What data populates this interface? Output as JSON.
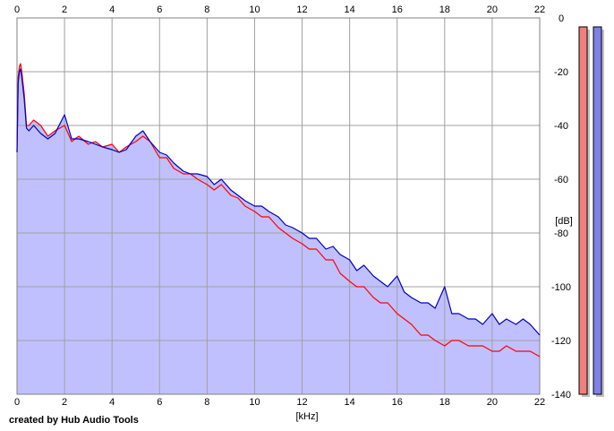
{
  "credit_text": "created by Hub Audio Tools",
  "colors": {
    "background": "#ffffff",
    "plot_background": "#ffffff",
    "grid": "#a0a0a0",
    "fill": "#c0c0ff",
    "red_line": "#ff0000",
    "blue_line": "#0000c0",
    "meter_red": "#f08080",
    "meter_blue": "#8080e8",
    "meter_shadow": "#c0c0c0"
  },
  "chart_data": {
    "type": "line",
    "xlabel": "[kHz]",
    "ylabel": "[dB]",
    "xlim": [
      0,
      22
    ],
    "ylim": [
      -140,
      0
    ],
    "grid": true,
    "x_ticks": [
      "0",
      "2",
      "4",
      "6",
      "8",
      "10",
      "12",
      "14",
      "16",
      "18",
      "20",
      "22"
    ],
    "y_ticks": [
      "0",
      "-20",
      "-40",
      "-60",
      "-80",
      "-100",
      "-120",
      "-140"
    ],
    "series": [
      {
        "color": "#ff0000",
        "x": [
          0.0,
          0.05,
          0.1,
          0.15,
          0.2,
          0.3,
          0.4,
          0.5,
          0.7,
          1.0,
          1.3,
          1.6,
          2.0,
          2.3,
          2.6,
          3.0,
          3.3,
          3.6,
          4.0,
          4.3,
          4.6,
          5.0,
          5.3,
          5.6,
          6.0,
          6.3,
          6.6,
          7.0,
          7.3,
          7.6,
          8.0,
          8.3,
          8.6,
          9.0,
          9.3,
          9.6,
          10.0,
          10.3,
          10.6,
          11.0,
          11.3,
          11.6,
          12.0,
          12.3,
          12.6,
          13.0,
          13.3,
          13.6,
          14.0,
          14.3,
          14.6,
          15.0,
          15.3,
          15.6,
          16.0,
          16.3,
          16.6,
          17.0,
          17.3,
          17.6,
          18.0,
          18.3,
          18.6,
          19.0,
          19.3,
          19.6,
          20.0,
          20.3,
          20.6,
          21.0,
          21.3,
          21.6,
          22.0
        ],
        "y": [
          -50,
          -22,
          -18,
          -17,
          -20,
          -28,
          -40,
          -40,
          -38,
          -40,
          -44,
          -42,
          -40,
          -46,
          -44,
          -47,
          -46,
          -48,
          -47,
          -50,
          -48,
          -46,
          -44,
          -46,
          -52,
          -52,
          -56,
          -58,
          -58,
          -60,
          -62,
          -64,
          -62,
          -66,
          -67,
          -70,
          -72,
          -74,
          -74,
          -78,
          -80,
          -82,
          -84,
          -86,
          -86,
          -90,
          -90,
          -95,
          -98,
          -100,
          -100,
          -104,
          -106,
          -106,
          -110,
          -112,
          -114,
          -118,
          -118,
          -120,
          -122,
          -120,
          -120,
          -122,
          -122,
          -122,
          -124,
          -124,
          -122,
          -124,
          -124,
          -124,
          -126
        ]
      },
      {
        "color": "#0000c0",
        "x": [
          0.0,
          0.05,
          0.1,
          0.15,
          0.2,
          0.3,
          0.4,
          0.5,
          0.7,
          1.0,
          1.3,
          1.6,
          2.0,
          2.3,
          2.6,
          3.0,
          3.3,
          3.6,
          4.0,
          4.3,
          4.6,
          5.0,
          5.3,
          5.6,
          6.0,
          6.3,
          6.6,
          7.0,
          7.3,
          7.6,
          8.0,
          8.3,
          8.6,
          9.0,
          9.3,
          9.6,
          10.0,
          10.3,
          10.6,
          11.0,
          11.3,
          11.6,
          12.0,
          12.3,
          12.6,
          13.0,
          13.3,
          13.6,
          14.0,
          14.3,
          14.6,
          15.0,
          15.3,
          15.6,
          16.0,
          16.3,
          16.6,
          17.0,
          17.3,
          17.6,
          18.0,
          18.3,
          18.6,
          19.0,
          19.3,
          19.6,
          20.0,
          20.3,
          20.6,
          21.0,
          21.3,
          21.6,
          22.0
        ],
        "y": [
          -50,
          -24,
          -20,
          -19,
          -22,
          -30,
          -41,
          -42,
          -40,
          -43,
          -45,
          -43,
          -36,
          -45,
          -45,
          -46,
          -47,
          -48,
          -49,
          -50,
          -49,
          -44,
          -42,
          -46,
          -50,
          -51,
          -54,
          -57,
          -58,
          -58,
          -59,
          -62,
          -60,
          -64,
          -66,
          -68,
          -70,
          -70,
          -72,
          -74,
          -77,
          -78,
          -80,
          -82,
          -82,
          -86,
          -85,
          -88,
          -90,
          -94,
          -92,
          -96,
          -98,
          -100,
          -96,
          -102,
          -104,
          -106,
          -106,
          -108,
          -100,
          -110,
          -110,
          -112,
          -112,
          -114,
          -110,
          -114,
          -112,
          -114,
          -112,
          -114,
          -118
        ]
      }
    ],
    "meters": [
      {
        "color": "#f08080",
        "level_db": 0
      },
      {
        "color": "#8080e8",
        "level_db": 0
      }
    ]
  }
}
